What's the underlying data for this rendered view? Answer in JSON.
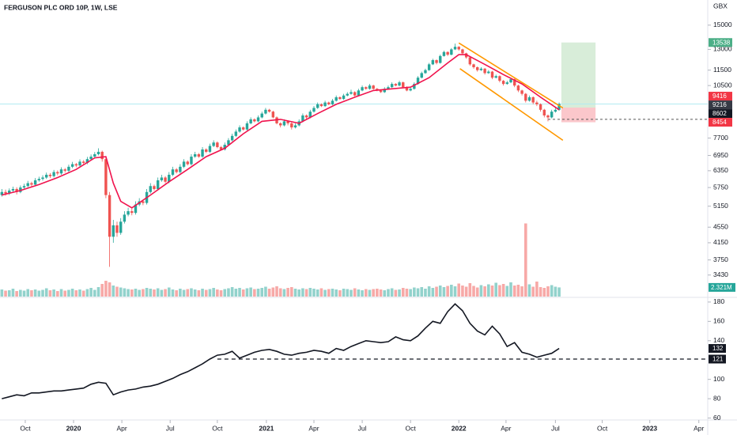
{
  "chart_data": {
    "type": "candlestick",
    "title": "FERGUSON PLC ORD 10P, 1W, LSE",
    "currency": "GBX",
    "log_scale": true,
    "xlim": [
      -0.5,
      190
    ],
    "xticks": [
      {
        "value": 6.3,
        "label": "Oct"
      },
      {
        "value": 19.3,
        "label": "2020"
      },
      {
        "value": 32.3,
        "label": "Apr"
      },
      {
        "value": 45.3,
        "label": "Jul"
      },
      {
        "value": 58,
        "label": "Oct"
      },
      {
        "value": 71.2,
        "label": "2021"
      },
      {
        "value": 84,
        "label": "Apr"
      },
      {
        "value": 97,
        "label": "Jul"
      },
      {
        "value": 110,
        "label": "Oct"
      },
      {
        "value": 123,
        "label": "2022"
      },
      {
        "value": 135.7,
        "label": "Apr"
      },
      {
        "value": 149,
        "label": "Jul"
      },
      {
        "value": 161.6,
        "label": "Oct"
      },
      {
        "value": 174.4,
        "label": "2023"
      },
      {
        "value": 187.6,
        "label": "Apr"
      }
    ],
    "ylim": [
      3020,
      17400
    ],
    "yticks": [
      15000,
      13000,
      11500,
      10500,
      7700,
      6950,
      6350,
      5750,
      5150,
      4550,
      4150,
      3750,
      3430
    ],
    "up_color": "#26a69a",
    "down_color": "#ef5350",
    "candles": [
      [
        5500,
        5700,
        5450,
        5600
      ],
      [
        5600,
        5680,
        5480,
        5550
      ],
      [
        5550,
        5720,
        5500,
        5650
      ],
      [
        5650,
        5780,
        5600,
        5700
      ],
      [
        5700,
        5760,
        5520,
        5600
      ],
      [
        5600,
        5820,
        5560,
        5750
      ],
      [
        5750,
        5880,
        5700,
        5800
      ],
      [
        5800,
        5980,
        5760,
        5900
      ],
      [
        5900,
        5950,
        5780,
        5850
      ],
      [
        5850,
        6080,
        5800,
        6000
      ],
      [
        6000,
        6130,
        5950,
        6050
      ],
      [
        6050,
        6180,
        5990,
        6100
      ],
      [
        6100,
        6280,
        6050,
        6200
      ],
      [
        6200,
        6260,
        6080,
        6150
      ],
      [
        6150,
        6380,
        6100,
        6300
      ],
      [
        6300,
        6360,
        6180,
        6250
      ],
      [
        6250,
        6480,
        6200,
        6400
      ],
      [
        6400,
        6450,
        6280,
        6350
      ],
      [
        6350,
        6580,
        6300,
        6500
      ],
      [
        6500,
        6690,
        6450,
        6600
      ],
      [
        6600,
        6650,
        6480,
        6550
      ],
      [
        6550,
        6790,
        6500,
        6700
      ],
      [
        6700,
        6760,
        6580,
        6650
      ],
      [
        6650,
        6890,
        6600,
        6800
      ],
      [
        6800,
        6990,
        6750,
        6900
      ],
      [
        6900,
        7090,
        6850,
        7000
      ],
      [
        7000,
        7250,
        6950,
        7100
      ],
      [
        7100,
        7150,
        6700,
        6800
      ],
      [
        6800,
        6850,
        5400,
        5500
      ],
      [
        5500,
        5600,
        3600,
        4300
      ],
      [
        4300,
        4750,
        4150,
        4600
      ],
      [
        4600,
        4700,
        4300,
        4400
      ],
      [
        4400,
        4800,
        4350,
        4700
      ],
      [
        4700,
        5000,
        4650,
        4900
      ],
      [
        4900,
        5100,
        4850,
        5000
      ],
      [
        5000,
        5080,
        4880,
        4950
      ],
      [
        4950,
        5300,
        4900,
        5200
      ],
      [
        5200,
        5400,
        5150,
        5300
      ],
      [
        5300,
        5350,
        5180,
        5250
      ],
      [
        5250,
        5700,
        5200,
        5600
      ],
      [
        5600,
        5900,
        5550,
        5800
      ],
      [
        5800,
        5850,
        5650,
        5700
      ],
      [
        5700,
        6100,
        5650,
        6000
      ],
      [
        6000,
        6200,
        5950,
        6100
      ],
      [
        6100,
        6150,
        5900,
        5950
      ],
      [
        5950,
        6300,
        5900,
        6200
      ],
      [
        6200,
        6500,
        6150,
        6400
      ],
      [
        6400,
        6450,
        6250,
        6300
      ],
      [
        6300,
        6600,
        6250,
        6500
      ],
      [
        6500,
        6800,
        6450,
        6700
      ],
      [
        6700,
        6750,
        6550,
        6600
      ],
      [
        6600,
        7000,
        6550,
        6900
      ],
      [
        6900,
        7100,
        6850,
        7000
      ],
      [
        7000,
        7050,
        6850,
        6900
      ],
      [
        6900,
        7300,
        6850,
        7200
      ],
      [
        7200,
        7250,
        7050,
        7100
      ],
      [
        7100,
        7450,
        7050,
        7350
      ],
      [
        7350,
        7600,
        7300,
        7500
      ],
      [
        7500,
        7550,
        7250,
        7300
      ],
      [
        7300,
        7350,
        7150,
        7200
      ],
      [
        7200,
        7500,
        7150,
        7400
      ],
      [
        7400,
        7700,
        7350,
        7600
      ],
      [
        7600,
        7900,
        7550,
        7800
      ],
      [
        7800,
        8100,
        7750,
        8000
      ],
      [
        8000,
        8300,
        7950,
        8200
      ],
      [
        8200,
        8250,
        8050,
        8100
      ],
      [
        8100,
        8500,
        8050,
        8400
      ],
      [
        8400,
        8700,
        8350,
        8600
      ],
      [
        8600,
        8650,
        8450,
        8500
      ],
      [
        8500,
        8800,
        8450,
        8700
      ],
      [
        8700,
        9000,
        8650,
        8900
      ],
      [
        8900,
        9200,
        8850,
        9100
      ],
      [
        9100,
        9150,
        8950,
        9000
      ],
      [
        9000,
        9050,
        8650,
        8700
      ],
      [
        8700,
        8750,
        8350,
        8400
      ],
      [
        8400,
        8450,
        8200,
        8300
      ],
      [
        8300,
        8600,
        8250,
        8500
      ],
      [
        8500,
        8550,
        8300,
        8400
      ],
      [
        8400,
        8450,
        8100,
        8200
      ],
      [
        8200,
        8400,
        8150,
        8300
      ],
      [
        8300,
        8600,
        8250,
        8500
      ],
      [
        8500,
        8900,
        8450,
        8800
      ],
      [
        8800,
        8850,
        8600,
        8700
      ],
      [
        8700,
        9100,
        8650,
        9000
      ],
      [
        9000,
        9300,
        8950,
        9200
      ],
      [
        9200,
        9500,
        9150,
        9400
      ],
      [
        9400,
        9450,
        9250,
        9300
      ],
      [
        9300,
        9600,
        9250,
        9500
      ],
      [
        9500,
        9550,
        9350,
        9400
      ],
      [
        9400,
        9700,
        9350,
        9600
      ],
      [
        9600,
        9900,
        9550,
        9800
      ],
      [
        9800,
        9850,
        9650,
        9700
      ],
      [
        9700,
        10000,
        9650,
        9900
      ],
      [
        9900,
        10100,
        9850,
        10000
      ],
      [
        10000,
        10250,
        9950,
        10100
      ],
      [
        10100,
        10150,
        9850,
        9900
      ],
      [
        9900,
        10300,
        9850,
        10200
      ],
      [
        10200,
        10500,
        10150,
        10400
      ],
      [
        10400,
        10450,
        10250,
        10300
      ],
      [
        10300,
        10600,
        10250,
        10500
      ],
      [
        10500,
        10550,
        10250,
        10300
      ],
      [
        10300,
        10350,
        10150,
        10200
      ],
      [
        10200,
        10250,
        10050,
        10100
      ],
      [
        10100,
        10400,
        10050,
        10300
      ],
      [
        10300,
        10500,
        10250,
        10400
      ],
      [
        10400,
        10700,
        10350,
        10600
      ],
      [
        10600,
        10650,
        10450,
        10500
      ],
      [
        10500,
        10800,
        10450,
        10700
      ],
      [
        10700,
        10750,
        10350,
        10400
      ],
      [
        10400,
        10450,
        10150,
        10200
      ],
      [
        10200,
        10400,
        10150,
        10300
      ],
      [
        10300,
        10700,
        10250,
        10600
      ],
      [
        10600,
        11100,
        10550,
        11000
      ],
      [
        11000,
        11400,
        10950,
        11300
      ],
      [
        11300,
        11600,
        11250,
        11500
      ],
      [
        11500,
        12000,
        11450,
        11900
      ],
      [
        11900,
        12300,
        11850,
        12200
      ],
      [
        12200,
        12250,
        11900,
        12000
      ],
      [
        12000,
        12600,
        11950,
        12500
      ],
      [
        12500,
        12900,
        12450,
        12800
      ],
      [
        12800,
        12850,
        12500,
        12600
      ],
      [
        12600,
        13100,
        12550,
        13000
      ],
      [
        13000,
        13450,
        12950,
        13200
      ],
      [
        13200,
        13250,
        12900,
        13000
      ],
      [
        13000,
        13050,
        12600,
        12700
      ],
      [
        12700,
        12750,
        12300,
        12400
      ],
      [
        12400,
        12450,
        11800,
        11900
      ],
      [
        11900,
        11950,
        11600,
        11700
      ],
      [
        11700,
        11750,
        11400,
        11500
      ],
      [
        11500,
        11700,
        11450,
        11600
      ],
      [
        11600,
        11650,
        11200,
        11300
      ],
      [
        11300,
        11500,
        11250,
        11400
      ],
      [
        11400,
        11450,
        10900,
        11000
      ],
      [
        11000,
        11200,
        10950,
        11100
      ],
      [
        11100,
        11150,
        10700,
        10800
      ],
      [
        10800,
        10850,
        10500,
        10600
      ],
      [
        10600,
        10800,
        10550,
        10700
      ],
      [
        10700,
        11000,
        10650,
        10900
      ],
      [
        10900,
        10950,
        10400,
        10500
      ],
      [
        10500,
        10550,
        10100,
        10200
      ],
      [
        10200,
        10250,
        9900,
        10000
      ],
      [
        10000,
        10050,
        9500,
        9600
      ],
      [
        9600,
        9900,
        9550,
        9800
      ],
      [
        9800,
        9850,
        9400,
        9500
      ],
      [
        9500,
        9600,
        9300,
        9400
      ],
      [
        9400,
        9450,
        9000,
        9100
      ],
      [
        9100,
        9150,
        8700,
        8800
      ],
      [
        8800,
        8850,
        8500,
        8700
      ],
      [
        8700,
        9100,
        8650,
        9000
      ],
      [
        9000,
        9200,
        8950,
        9100
      ],
      [
        9100,
        9500,
        9050,
        9416
      ]
    ],
    "ma": {
      "color": "#f0134d",
      "x": [
        0,
        5,
        10,
        15,
        20,
        25,
        28,
        30,
        32,
        35,
        40,
        45,
        50,
        55,
        60,
        65,
        70,
        75,
        80,
        85,
        90,
        95,
        100,
        105,
        110,
        115,
        120,
        123,
        125,
        130,
        135,
        140,
        145,
        150
      ],
      "values": [
        5500,
        5650,
        5850,
        6100,
        6400,
        6850,
        6900,
        5900,
        5300,
        5100,
        5500,
        5950,
        6400,
        6900,
        7250,
        7900,
        8500,
        8600,
        8400,
        8900,
        9400,
        9800,
        10200,
        10300,
        10400,
        11000,
        12000,
        12600,
        12600,
        11900,
        11200,
        10600,
        9800,
        9100
      ]
    },
    "channel": {
      "color": "#ff9800",
      "lines": [
        {
          "x": [
            123,
            151
          ],
          "values": [
            13500,
            9200
          ]
        },
        {
          "x": [
            123.3,
            151
          ],
          "values": [
            11600,
            7600
          ]
        }
      ]
    },
    "position": {
      "x": [
        150.6,
        159.8
      ],
      "entry": 9216,
      "target": 13538,
      "stop": 8454
    },
    "last_price": 9416,
    "dashed_level": {
      "value": 8602,
      "x": 147
    },
    "price_tags": [
      {
        "value": 13538,
        "color": "#4caf87"
      },
      {
        "value": 9416,
        "color": "#f23645"
      },
      {
        "value": 9216,
        "color": "#363a45"
      },
      {
        "value": 8602,
        "color": "#131722"
      },
      {
        "value": 8454,
        "color": "#f23645"
      }
    ],
    "volume": {
      "ylim": [
        0,
        20
      ],
      "values": [
        1.8,
        1.5,
        1.6,
        2.0,
        1.4,
        1.7,
        1.5,
        1.9,
        1.6,
        1.8,
        1.5,
        1.7,
        2.1,
        1.6,
        1.8,
        1.4,
        1.9,
        1.5,
        1.7,
        2.0,
        1.6,
        1.8,
        1.5,
        1.9,
        2.2,
        1.7,
        2.4,
        3.2,
        4.0,
        3.6,
        2.8,
        2.5,
        2.3,
        2.1,
        1.9,
        1.8,
        2.0,
        1.7,
        1.9,
        2.2,
        2.0,
        1.8,
        2.1,
        1.7,
        1.9,
        2.3,
        1.8,
        1.6,
        2.0,
        1.7,
        1.9,
        2.1,
        1.8,
        1.6,
        2.0,
        1.7,
        1.9,
        2.2,
        1.8,
        1.6,
        1.9,
        2.1,
        2.4,
        2.0,
        2.2,
        1.8,
        2.1,
        2.3,
        1.9,
        2.0,
        2.2,
        2.5,
        2.0,
        2.3,
        2.6,
        2.1,
        1.9,
        2.2,
        2.4,
        2.0,
        1.8,
        2.1,
        1.9,
        2.2,
        2.0,
        1.8,
        2.1,
        1.7,
        1.9,
        2.0,
        1.8,
        1.6,
        2.0,
        1.9,
        1.7,
        2.1,
        1.8,
        1.6,
        1.9,
        1.7,
        1.9,
        2.0,
        1.8,
        1.6,
        1.9,
        2.1,
        1.7,
        1.8,
        2.2,
        2.0,
        1.9,
        2.3,
        2.1,
        2.4,
        2.0,
        2.6,
        2.2,
        2.5,
        2.8,
        2.4,
        2.7,
        3.0,
        2.6,
        3.3,
        2.8,
        2.5,
        3.4,
        2.7,
        2.3,
        2.9,
        2.6,
        3.1,
        2.8,
        3.5,
        2.9,
        3.2,
        2.7,
        3.6,
        2.8,
        3.0,
        2.6,
        18.5,
        3.1,
        2.5,
        3.8,
        2.4,
        2.2,
        2.6,
        2.9,
        2.5,
        2.321
      ],
      "last": {
        "value": 2.321,
        "label": "2.321M"
      },
      "tag_color": "#26a69a"
    },
    "indicator": {
      "ylim": [
        58,
        184
      ],
      "yticks": [
        60,
        80,
        100,
        140,
        160,
        180
      ],
      "color": "#131722",
      "x": [
        0,
        2,
        4,
        6,
        8,
        10,
        12,
        14,
        16,
        18,
        20,
        22,
        24,
        26,
        28,
        30,
        32,
        34,
        36,
        38,
        40,
        42,
        44,
        46,
        48,
        50,
        52,
        54,
        56,
        58,
        60,
        62,
        64,
        66,
        68,
        70,
        72,
        74,
        76,
        78,
        80,
        82,
        84,
        86,
        88,
        90,
        92,
        94,
        96,
        98,
        100,
        102,
        104,
        106,
        108,
        110,
        112,
        114,
        116,
        118,
        120,
        122,
        124,
        126,
        128,
        130,
        132,
        134,
        136,
        138,
        140,
        142,
        144,
        146,
        148,
        150
      ],
      "values": [
        80,
        82,
        84,
        83,
        86,
        86,
        87,
        88,
        88,
        89,
        90,
        91,
        95,
        97,
        96,
        84,
        87,
        89,
        90,
        92,
        93,
        95,
        98,
        101,
        105,
        108,
        112,
        116,
        121,
        125,
        126,
        129,
        122,
        125,
        128,
        130,
        131,
        129,
        126,
        125,
        127,
        128,
        130,
        129,
        127,
        132,
        130,
        134,
        137,
        140,
        139,
        138,
        139,
        144,
        141,
        140,
        145,
        153,
        160,
        158,
        170,
        178,
        171,
        158,
        150,
        146,
        155,
        147,
        134,
        138,
        128,
        126,
        123,
        125,
        127,
        132
      ],
      "level": {
        "value": 121,
        "x": 58
      },
      "tags": [
        {
          "value": 132,
          "color": "#131722"
        },
        {
          "value": 121,
          "color": "#131722"
        }
      ]
    }
  }
}
